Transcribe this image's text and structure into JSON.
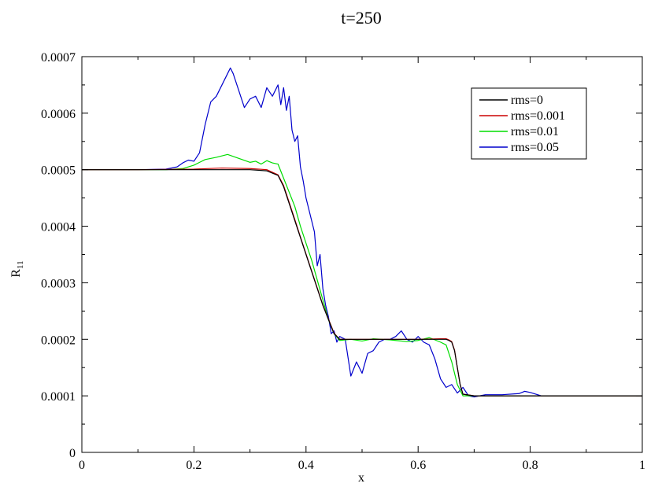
{
  "chart_data": {
    "type": "line",
    "title": "t=250",
    "xlabel": "x",
    "ylabel": "R",
    "ylabel_subscript": "11",
    "xlim": [
      0,
      1
    ],
    "ylim": [
      0,
      0.0007
    ],
    "x_ticks": [
      "0",
      "0.2",
      "0.4",
      "0.6",
      "0.8",
      "1"
    ],
    "y_ticks": [
      "0",
      "0.0001",
      "0.0002",
      "0.0003",
      "0.0004",
      "0.0005",
      "0.0006",
      "0.0007"
    ],
    "grid": false,
    "legend_position": "top-right",
    "series": [
      {
        "name": "rms=0",
        "color": "#000000",
        "x": [
          0,
          0.1,
          0.2,
          0.3,
          0.33,
          0.35,
          0.36,
          0.37,
          0.38,
          0.39,
          0.4,
          0.41,
          0.42,
          0.43,
          0.44,
          0.45,
          0.46,
          0.5,
          0.55,
          0.6,
          0.64,
          0.65,
          0.655,
          0.66,
          0.665,
          0.67,
          0.675,
          0.68,
          0.7,
          0.8,
          0.9,
          1.0
        ],
        "y": [
          0.0005,
          0.0005,
          0.0005,
          0.0005,
          0.000498,
          0.00049,
          0.00047,
          0.00044,
          0.00041,
          0.00038,
          0.00035,
          0.00032,
          0.00029,
          0.00026,
          0.000235,
          0.00021,
          0.0002,
          0.0002,
          0.0002,
          0.0002,
          0.0002,
          0.0002,
          0.000198,
          0.000195,
          0.00018,
          0.00015,
          0.00012,
          0.000103,
          0.0001,
          0.0001,
          0.0001,
          0.0001
        ]
      },
      {
        "name": "rms=0.001",
        "color": "#cc0000",
        "x": [
          0,
          0.1,
          0.2,
          0.25,
          0.3,
          0.33,
          0.35,
          0.36,
          0.37,
          0.38,
          0.39,
          0.4,
          0.41,
          0.42,
          0.43,
          0.44,
          0.45,
          0.46,
          0.5,
          0.55,
          0.6,
          0.64,
          0.65,
          0.655,
          0.66,
          0.665,
          0.67,
          0.675,
          0.68,
          0.7,
          0.8,
          0.9,
          1.0
        ],
        "y": [
          0.0005,
          0.0005,
          0.000501,
          0.000503,
          0.000502,
          0.0005,
          0.000491,
          0.000472,
          0.000442,
          0.000412,
          0.000381,
          0.000351,
          0.000321,
          0.000291,
          0.000261,
          0.000236,
          0.000211,
          0.0002,
          0.0002,
          0.0002,
          0.0002,
          0.000201,
          0.000201,
          0.000199,
          0.000196,
          0.000181,
          0.00015,
          0.00012,
          0.000103,
          0.0001,
          0.0001,
          0.0001,
          0.0001
        ]
      },
      {
        "name": "rms=0.01",
        "color": "#00dd00",
        "x": [
          0,
          0.1,
          0.15,
          0.18,
          0.2,
          0.22,
          0.24,
          0.26,
          0.28,
          0.3,
          0.31,
          0.32,
          0.33,
          0.34,
          0.35,
          0.36,
          0.37,
          0.38,
          0.39,
          0.4,
          0.41,
          0.42,
          0.43,
          0.44,
          0.45,
          0.46,
          0.48,
          0.5,
          0.52,
          0.55,
          0.58,
          0.6,
          0.62,
          0.64,
          0.65,
          0.66,
          0.67,
          0.68,
          0.7,
          0.8,
          0.9,
          1.0
        ],
        "y": [
          0.0005,
          0.0005,
          0.0005,
          0.000502,
          0.000508,
          0.000518,
          0.000522,
          0.000527,
          0.00052,
          0.000513,
          0.000515,
          0.00051,
          0.000516,
          0.000512,
          0.00051,
          0.000485,
          0.00046,
          0.000435,
          0.0004,
          0.00037,
          0.00034,
          0.000305,
          0.00027,
          0.000235,
          0.00021,
          0.000198,
          0.0002,
          0.000197,
          0.000201,
          0.000199,
          0.000196,
          0.000198,
          0.000203,
          0.000195,
          0.00019,
          0.00016,
          0.00012,
          0.0001,
          0.0001,
          0.0001,
          0.0001,
          0.0001
        ]
      },
      {
        "name": "rms=0.05",
        "color": "#0000cc",
        "x": [
          0,
          0.1,
          0.15,
          0.17,
          0.18,
          0.19,
          0.2,
          0.21,
          0.22,
          0.23,
          0.24,
          0.25,
          0.26,
          0.265,
          0.27,
          0.28,
          0.29,
          0.3,
          0.31,
          0.32,
          0.33,
          0.34,
          0.35,
          0.355,
          0.36,
          0.365,
          0.37,
          0.375,
          0.38,
          0.385,
          0.39,
          0.395,
          0.4,
          0.405,
          0.41,
          0.415,
          0.42,
          0.425,
          0.43,
          0.435,
          0.44,
          0.445,
          0.45,
          0.455,
          0.46,
          0.47,
          0.48,
          0.49,
          0.5,
          0.51,
          0.52,
          0.53,
          0.54,
          0.55,
          0.56,
          0.57,
          0.58,
          0.59,
          0.6,
          0.61,
          0.62,
          0.63,
          0.64,
          0.65,
          0.66,
          0.67,
          0.68,
          0.69,
          0.7,
          0.71,
          0.72,
          0.75,
          0.78,
          0.79,
          0.8,
          0.82,
          0.9,
          1.0
        ],
        "y": [
          0.0005,
          0.0005,
          0.000501,
          0.000505,
          0.000512,
          0.000517,
          0.000515,
          0.00053,
          0.00058,
          0.00062,
          0.00063,
          0.00065,
          0.00067,
          0.00068,
          0.00067,
          0.00064,
          0.00061,
          0.000625,
          0.00063,
          0.00061,
          0.000645,
          0.00063,
          0.00065,
          0.000615,
          0.000645,
          0.000605,
          0.00063,
          0.00057,
          0.00055,
          0.00056,
          0.000505,
          0.00048,
          0.00045,
          0.00043,
          0.00041,
          0.00039,
          0.00033,
          0.00035,
          0.00029,
          0.00026,
          0.00024,
          0.00021,
          0.000215,
          0.000195,
          0.000205,
          0.0002,
          0.000135,
          0.00016,
          0.00014,
          0.000175,
          0.00018,
          0.000195,
          0.0002,
          0.0002,
          0.000205,
          0.000215,
          0.0002,
          0.000195,
          0.000205,
          0.000195,
          0.00019,
          0.000165,
          0.00013,
          0.000115,
          0.00012,
          0.000105,
          0.000115,
          0.0001,
          9.8e-05,
          0.0001,
          0.000102,
          0.000102,
          0.000104,
          0.000108,
          0.000106,
          0.0001,
          0.0001,
          0.0001
        ]
      }
    ]
  }
}
